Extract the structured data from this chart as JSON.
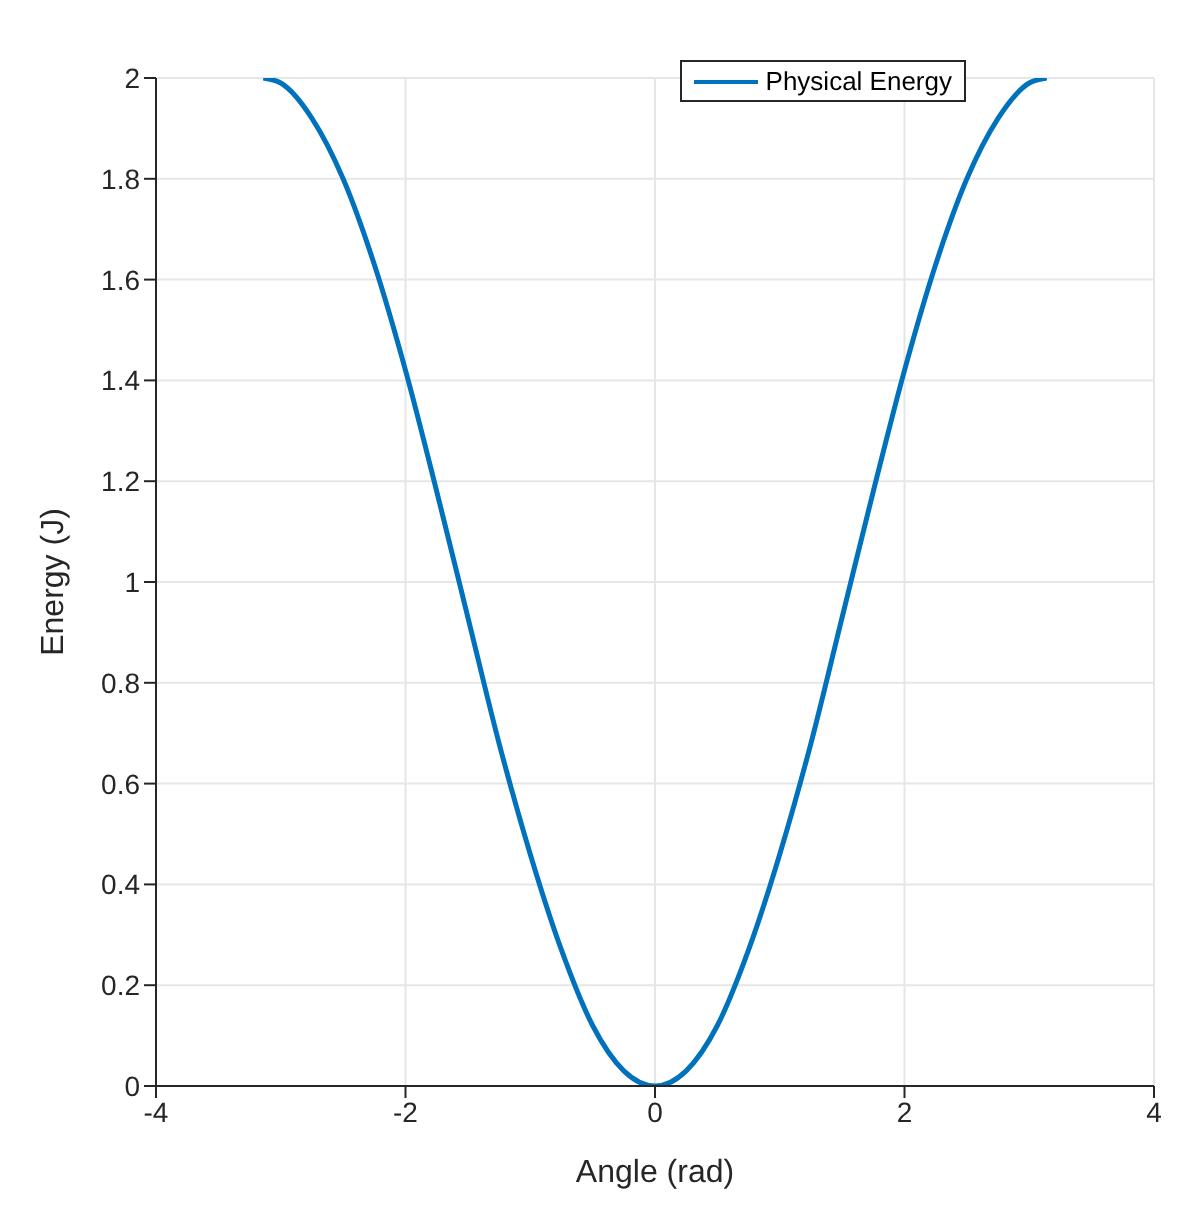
{
  "chart_data": {
    "type": "line",
    "xlabel": "Angle (rad)",
    "ylabel": "Energy (J)",
    "x": [
      -3.14,
      -3,
      -2.75,
      -2.5,
      -2.25,
      -2,
      -1.75,
      -1.5,
      -1.25,
      -1,
      -0.75,
      -0.5,
      -0.25,
      0,
      0.25,
      0.5,
      0.75,
      1,
      1.25,
      1.5,
      1.75,
      2,
      2.25,
      2.5,
      2.75,
      3,
      3.14
    ],
    "series": [
      {
        "name": "Physical Energy",
        "color": "#0072bd",
        "values": [
          2,
          1.99,
          1.92,
          1.8,
          1.63,
          1.42,
          1.18,
          0.93,
          0.68,
          0.46,
          0.27,
          0.12,
          0.03,
          0,
          0.03,
          0.12,
          0.27,
          0.46,
          0.68,
          0.93,
          1.18,
          1.42,
          1.63,
          1.8,
          1.92,
          1.99,
          2
        ]
      }
    ],
    "xlim": [
      -4,
      4
    ],
    "xticks": [
      -4,
      -2,
      0,
      2,
      4
    ],
    "ylim": [
      0,
      2
    ],
    "yticks": [
      0,
      0.2,
      0.4,
      0.6,
      0.8,
      1,
      1.2,
      1.4,
      1.6,
      1.8,
      2
    ],
    "grid": true,
    "legend": "top right",
    "marker": "none",
    "line_style": "solid"
  }
}
